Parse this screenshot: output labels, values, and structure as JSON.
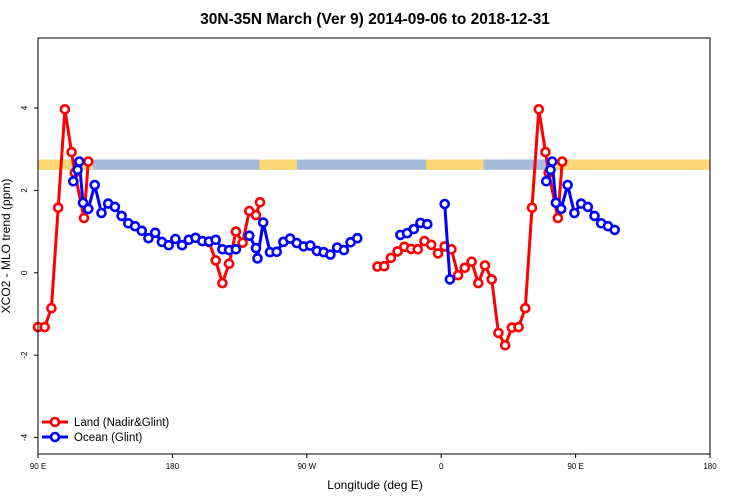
{
  "chart_data": {
    "type": "line",
    "title": "30N-35N March (Ver 9)   2014-09-06 to 2018-12-31",
    "xlabel": "Longitude (deg E)",
    "ylabel": "XCO2 - MLO trend (ppm)",
    "xlim": [
      -90,
      180
    ],
    "ylim": [
      -4.4,
      5.7
    ],
    "x_ticks": [
      -90,
      -36,
      18,
      72,
      126,
      180
    ],
    "x_tick_labels": [
      "90 E",
      "180",
      "90 W",
      "0",
      "90 E",
      "180"
    ],
    "y_ticks": [
      -4,
      -2,
      0,
      2,
      4
    ],
    "y_tick_labels": [
      "-4",
      "-2",
      "0",
      "2",
      "4"
    ],
    "grid": false,
    "legend_position": "bottom-left",
    "background_band": {
      "y_range": [
        2.5,
        2.75
      ],
      "land_color": "#FFD875",
      "ocean_color": "#A5BBDD",
      "land_longitude_segments": [
        [
          -90,
          -68
        ],
        [
          -1,
          14
        ],
        [
          66,
          89
        ],
        [
          117,
          180
        ]
      ]
    },
    "series": [
      {
        "name": "Land (Nadir&Glint)",
        "color": "#FF0000",
        "segments": [
          [
            [
              -90,
              -1.32
            ],
            [
              -87.3,
              -1.32
            ],
            [
              -84.6,
              -0.86
            ],
            [
              -81.9,
              1.58
            ],
            [
              -79.2,
              3.97
            ],
            [
              -76.5,
              2.93
            ],
            [
              -75.2,
              2.43
            ],
            [
              -71.5,
              1.33
            ],
            [
              -69.8,
              2.7
            ]
          ],
          [
            [
              -21.3,
              0.75
            ],
            [
              -18.6,
              0.3
            ],
            [
              -15.9,
              -0.25
            ],
            [
              -13.2,
              0.22
            ],
            [
              -10.5,
              1.0
            ],
            [
              -7.8,
              0.73
            ],
            [
              -5.1,
              1.5
            ],
            [
              -2.4,
              1.4
            ],
            [
              -0.8,
              1.71
            ]
          ],
          [
            [
              46.4,
              0.15
            ],
            [
              49.1,
              0.16
            ],
            [
              51.8,
              0.36
            ],
            [
              54.5,
              0.52
            ],
            [
              57.2,
              0.63
            ],
            [
              59.9,
              0.58
            ],
            [
              62.6,
              0.57
            ],
            [
              65.3,
              0.77
            ],
            [
              68.0,
              0.68
            ],
            [
              70.7,
              0.47
            ],
            [
              73.4,
              0.64
            ],
            [
              76.1,
              0.57
            ],
            [
              78.8,
              -0.06
            ],
            [
              81.5,
              0.12
            ],
            [
              84.2,
              0.27
            ],
            [
              86.9,
              -0.25
            ],
            [
              89.6,
              0.18
            ],
            [
              92.3,
              -0.16
            ],
            [
              95.0,
              -1.46
            ],
            [
              97.7,
              -1.76
            ],
            [
              100.4,
              -1.33
            ],
            [
              103.1,
              -1.32
            ],
            [
              105.8,
              -0.86
            ],
            [
              108.5,
              1.58
            ],
            [
              111.2,
              3.97
            ],
            [
              113.9,
              2.93
            ],
            [
              115.2,
              2.43
            ],
            [
              118.9,
              1.33
            ],
            [
              120.6,
              2.7
            ]
          ]
        ]
      },
      {
        "name": "Ocean (Glint)",
        "color": "#0000FF",
        "segments": [
          [
            [
              -75.8,
              2.22
            ],
            [
              -74.1,
              2.5
            ],
            [
              -73.4,
              2.7
            ],
            [
              -71.9,
              1.7
            ],
            [
              -69.8,
              1.55
            ],
            [
              -67.2,
              2.13
            ],
            [
              -64.5,
              1.45
            ],
            [
              -61.8,
              1.68
            ],
            [
              -59.1,
              1.6
            ],
            [
              -56.4,
              1.38
            ],
            [
              -53.7,
              1.2
            ],
            [
              -51.0,
              1.13
            ],
            [
              -48.3,
              1.02
            ],
            [
              -45.6,
              0.84
            ],
            [
              -42.9,
              0.97
            ],
            [
              -40.2,
              0.75
            ],
            [
              -37.5,
              0.67
            ],
            [
              -34.8,
              0.82
            ],
            [
              -32.1,
              0.67
            ],
            [
              -29.4,
              0.8
            ],
            [
              -26.7,
              0.85
            ],
            [
              -24.0,
              0.77
            ],
            [
              -21.3,
              0.76
            ],
            [
              -18.6,
              0.8
            ],
            [
              -15.9,
              0.57
            ],
            [
              -13.2,
              0.55
            ],
            [
              -10.5,
              0.57
            ]
          ],
          [
            [
              -5.1,
              0.9
            ],
            [
              -2.4,
              0.6
            ],
            [
              -1.8,
              0.35
            ],
            [
              0.5,
              1.22
            ],
            [
              3.2,
              0.5
            ],
            [
              5.9,
              0.51
            ],
            [
              8.6,
              0.75
            ],
            [
              11.3,
              0.83
            ],
            [
              14.0,
              0.72
            ],
            [
              16.7,
              0.64
            ],
            [
              19.4,
              0.66
            ],
            [
              22.1,
              0.53
            ],
            [
              24.8,
              0.5
            ],
            [
              27.5,
              0.44
            ],
            [
              30.2,
              0.61
            ],
            [
              32.9,
              0.55
            ],
            [
              35.6,
              0.74
            ],
            [
              38.3,
              0.84
            ]
          ],
          [
            [
              55.6,
              0.92
            ],
            [
              58.3,
              0.96
            ],
            [
              61.0,
              1.06
            ],
            [
              63.7,
              1.21
            ],
            [
              66.4,
              1.18
            ]
          ],
          [
            [
              73.4,
              1.67
            ],
            [
              75.5,
              -0.16
            ]
          ],
          [
            [
              114.2,
              2.22
            ],
            [
              115.9,
              2.5
            ],
            [
              116.6,
              2.7
            ],
            [
              118.1,
              1.7
            ],
            [
              120.2,
              1.55
            ],
            [
              122.8,
              2.13
            ],
            [
              125.5,
              1.45
            ],
            [
              128.2,
              1.68
            ],
            [
              130.9,
              1.6
            ],
            [
              133.6,
              1.38
            ],
            [
              136.3,
              1.2
            ],
            [
              139.0,
              1.13
            ],
            [
              141.7,
              1.04
            ]
          ]
        ]
      }
    ]
  }
}
